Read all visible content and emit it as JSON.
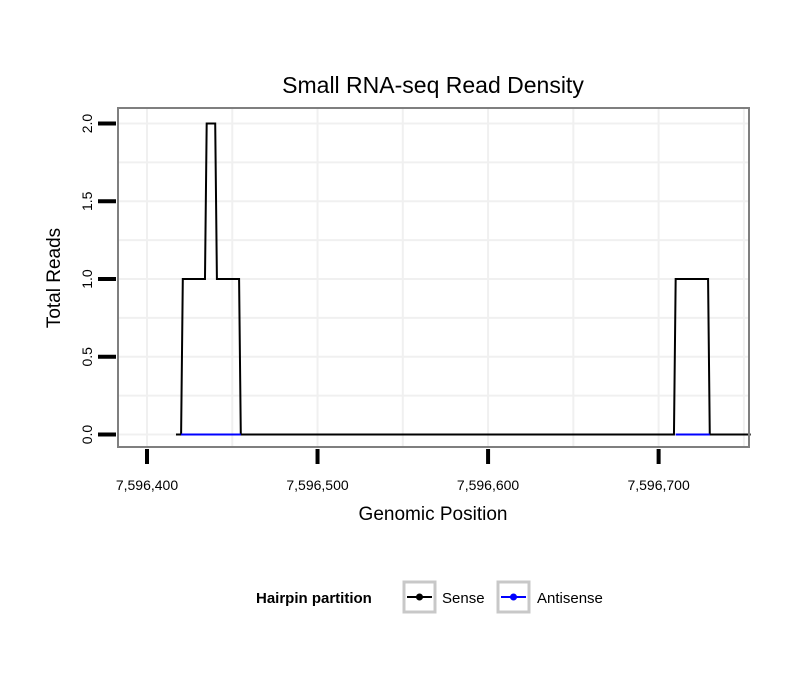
{
  "chart_data": {
    "type": "line",
    "title": "Small RNA-seq Read Density",
    "xlabel": "Genomic Position",
    "ylabel": "Total Reads",
    "xlim": [
      7596383,
      7596753
    ],
    "ylim": [
      -0.08,
      2.1
    ],
    "x_ticks": [
      7596400,
      7596500,
      7596600,
      7596700
    ],
    "x_tick_labels": [
      "7,596,400",
      "7,596,500",
      "7,596,600",
      "7,596,700"
    ],
    "y_ticks": [
      0,
      0.5,
      1,
      1.5,
      2
    ],
    "y_tick_labels": [
      "0.0",
      "0.5",
      "1.0",
      "1.5",
      "2.0"
    ],
    "grid": true,
    "legend": {
      "title": "Hairpin partition",
      "placement": "bottom",
      "entries": [
        "Sense",
        "Antisense"
      ]
    },
    "series": [
      {
        "name": "Sense",
        "color": "#000000",
        "x": [
          7596417,
          7596420,
          7596421,
          7596434,
          7596435,
          7596440,
          7596441,
          7596454,
          7596455,
          7596709,
          7596710,
          7596729,
          7596730,
          7596754
        ],
        "y": [
          0,
          0,
          1,
          1,
          2,
          2,
          1,
          1,
          0,
          0,
          1,
          1,
          0,
          0
        ]
      },
      {
        "name": "Antisense",
        "color": "#0000ff",
        "x": [
          7596420,
          7596455,
          7596710,
          7596730
        ],
        "y": [
          0,
          0,
          0,
          0
        ],
        "segments": [
          [
            0,
            1
          ],
          [
            2,
            3
          ]
        ]
      }
    ]
  }
}
